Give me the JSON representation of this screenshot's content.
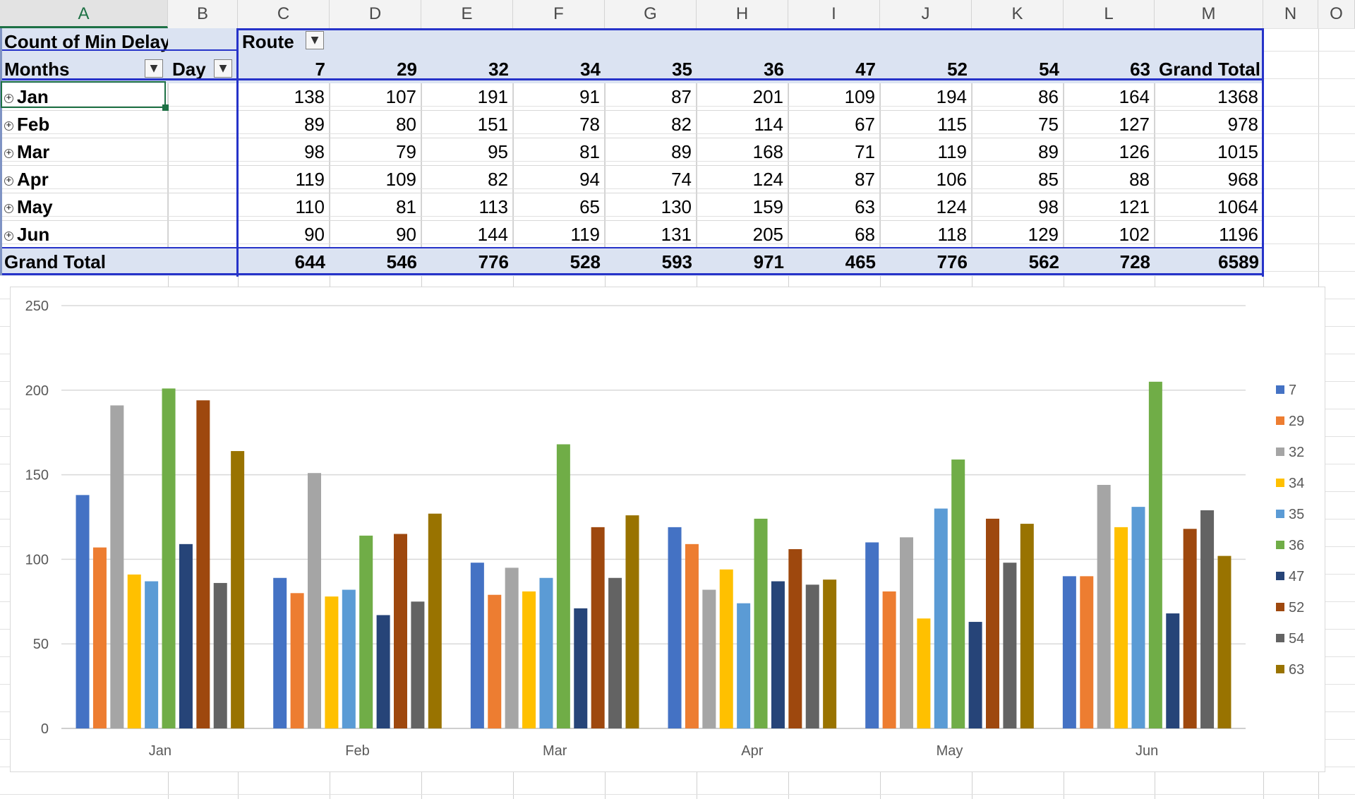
{
  "columns": [
    "A",
    "B",
    "C",
    "D",
    "E",
    "F",
    "G",
    "H",
    "I",
    "J",
    "K",
    "L",
    "M",
    "N",
    "O"
  ],
  "active_column": "A",
  "pivot": {
    "value_label": "Count of Min Delay",
    "column_field": "Route",
    "row_field": "Months",
    "row_field_2": "Day",
    "routes": [
      "7",
      "29",
      "32",
      "34",
      "35",
      "36",
      "47",
      "52",
      "54",
      "63"
    ],
    "grand_total_label": "Grand Total",
    "rows": [
      {
        "label": "Jan",
        "values": [
          138,
          107,
          191,
          91,
          87,
          201,
          109,
          194,
          86,
          164
        ],
        "total": 1368
      },
      {
        "label": "Feb",
        "values": [
          89,
          80,
          151,
          78,
          82,
          114,
          67,
          115,
          75,
          127
        ],
        "total": 978
      },
      {
        "label": "Mar",
        "values": [
          98,
          79,
          95,
          81,
          89,
          168,
          71,
          119,
          89,
          126
        ],
        "total": 1015
      },
      {
        "label": "Apr",
        "values": [
          119,
          109,
          82,
          94,
          74,
          124,
          87,
          106,
          85,
          88
        ],
        "total": 968
      },
      {
        "label": "May",
        "values": [
          110,
          81,
          113,
          65,
          130,
          159,
          63,
          124,
          98,
          121
        ],
        "total": 1064
      },
      {
        "label": "Jun",
        "values": [
          90,
          90,
          144,
          119,
          131,
          205,
          68,
          118,
          129,
          102
        ],
        "total": 1196
      }
    ],
    "grand_totals": [
      644,
      546,
      776,
      528,
      593,
      971,
      465,
      776,
      562,
      728
    ],
    "grand_total_all": 6589
  },
  "chart_data": {
    "type": "bar",
    "categories": [
      "Jan",
      "Feb",
      "Mar",
      "Apr",
      "May",
      "Jun"
    ],
    "ylim": [
      0,
      250
    ],
    "yticks": [
      0,
      50,
      100,
      150,
      200,
      250
    ],
    "grid": true,
    "legend_position": "right",
    "series": [
      {
        "name": "7",
        "color": "#4472c4",
        "values": [
          138,
          89,
          98,
          119,
          110,
          90
        ]
      },
      {
        "name": "29",
        "color": "#ed7d31",
        "values": [
          107,
          80,
          79,
          109,
          81,
          90
        ]
      },
      {
        "name": "32",
        "color": "#a5a5a5",
        "values": [
          191,
          151,
          95,
          82,
          113,
          144
        ]
      },
      {
        "name": "34",
        "color": "#ffc000",
        "values": [
          91,
          78,
          81,
          94,
          65,
          119
        ]
      },
      {
        "name": "35",
        "color": "#5b9bd5",
        "values": [
          87,
          82,
          89,
          74,
          130,
          131
        ]
      },
      {
        "name": "36",
        "color": "#70ad47",
        "values": [
          201,
          114,
          168,
          124,
          159,
          205
        ]
      },
      {
        "name": "47",
        "color": "#264478",
        "values": [
          109,
          67,
          71,
          87,
          63,
          68
        ]
      },
      {
        "name": "52",
        "color": "#9e480e",
        "values": [
          194,
          115,
          119,
          106,
          124,
          118
        ]
      },
      {
        "name": "54",
        "color": "#636363",
        "values": [
          86,
          75,
          89,
          85,
          98,
          129
        ]
      },
      {
        "name": "63",
        "color": "#997300",
        "values": [
          164,
          127,
          126,
          88,
          121,
          102
        ]
      }
    ]
  }
}
